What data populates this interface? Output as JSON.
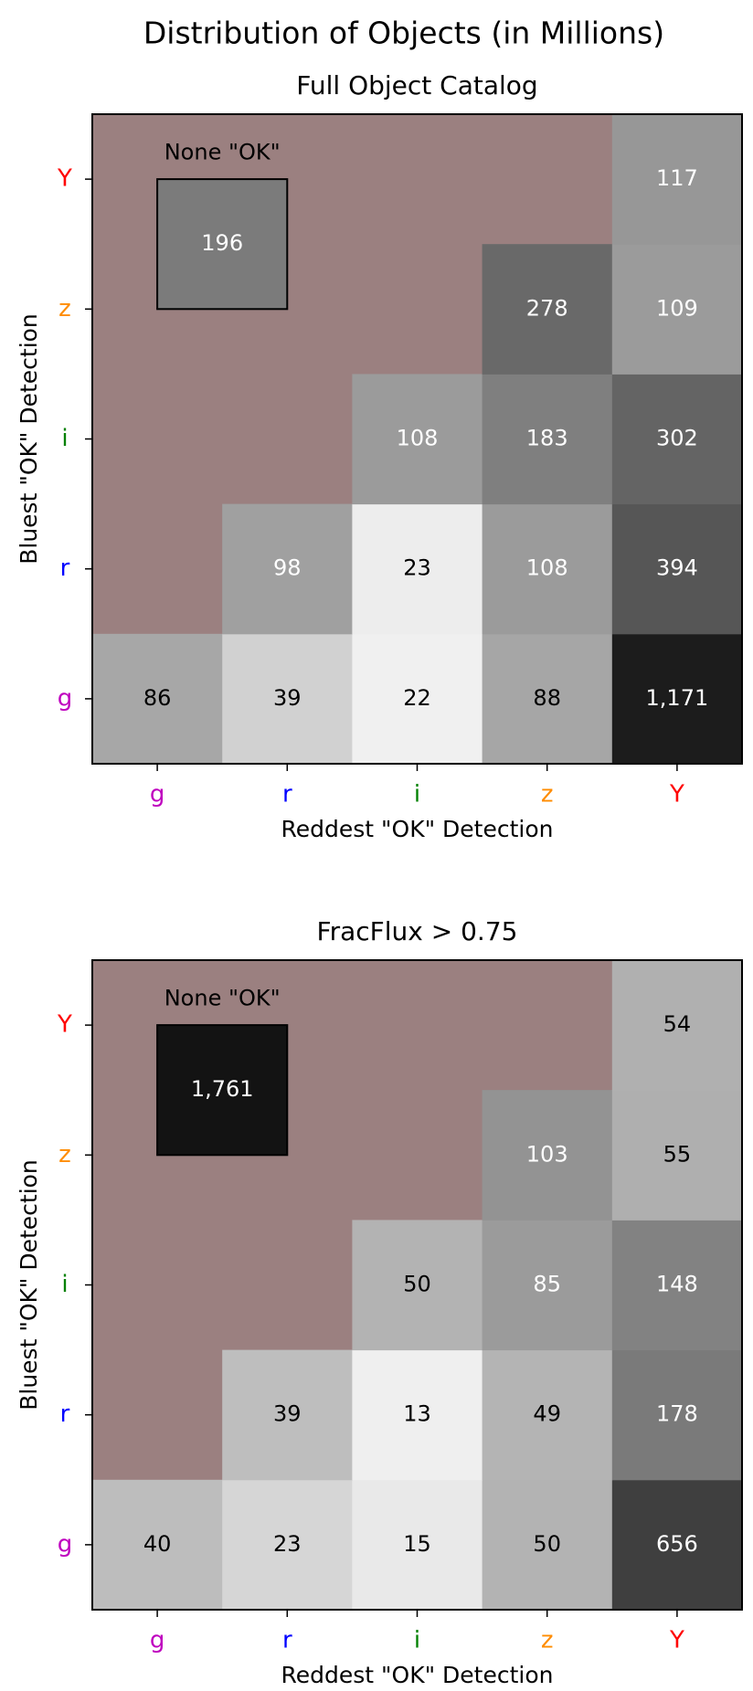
{
  "title": "Distribution of Objects (in Millions)",
  "chart_data": [
    {
      "type": "heatmap",
      "title": "Full Object Catalog",
      "x_label": "Reddest \"OK\" Detection",
      "y_label": "Bluest \"OK\" Detection",
      "x_categories": [
        "g",
        "r",
        "i",
        "z",
        "Y"
      ],
      "y_categories": [
        "g",
        "r",
        "i",
        "z",
        "Y"
      ],
      "tick_colors": [
        "#bf00bf",
        "#0000ff",
        "#008000",
        "#ff8c00",
        "#ff0000"
      ],
      "values": [
        [
          86,
          39,
          22,
          88,
          1171
        ],
        [
          null,
          98,
          23,
          108,
          394
        ],
        [
          null,
          null,
          108,
          183,
          302
        ],
        [
          null,
          null,
          null,
          278,
          109
        ],
        [
          null,
          null,
          null,
          null,
          117
        ]
      ],
      "value_labels": [
        [
          null,
          null,
          null,
          null,
          "1,171"
        ],
        [
          null,
          null,
          null,
          null,
          null
        ],
        [
          null,
          null,
          null,
          null,
          null
        ],
        [
          null,
          null,
          null,
          null,
          null
        ],
        [
          null,
          null,
          null,
          null,
          null
        ]
      ],
      "none_label": "None \"OK\"",
      "none_value": 196,
      "color_scale": "log",
      "clim": [
        16.5,
        1990
      ],
      "background": "#9b8080"
    },
    {
      "type": "heatmap",
      "title": "FracFlux > 0.75",
      "x_label": "Reddest \"OK\" Detection",
      "y_label": "Bluest \"OK\" Detection",
      "x_categories": [
        "g",
        "r",
        "i",
        "z",
        "Y"
      ],
      "y_categories": [
        "g",
        "r",
        "i",
        "z",
        "Y"
      ],
      "tick_colors": [
        "#bf00bf",
        "#0000ff",
        "#008000",
        "#ff8c00",
        "#ff0000"
      ],
      "values": [
        [
          40,
          23,
          15,
          50,
          656
        ],
        [
          null,
          39,
          13,
          49,
          178
        ],
        [
          null,
          null,
          50,
          85,
          148
        ],
        [
          null,
          null,
          null,
          103,
          55
        ],
        [
          null,
          null,
          null,
          null,
          54
        ]
      ],
      "value_labels": [
        [
          null,
          null,
          null,
          null,
          null
        ],
        [
          null,
          null,
          null,
          null,
          null
        ],
        [
          null,
          null,
          null,
          null,
          null
        ],
        [
          null,
          null,
          null,
          null,
          null
        ],
        [
          null,
          null,
          null,
          null,
          null
        ]
      ],
      "none_label": "None \"OK\"",
      "none_value": 1761,
      "none_value_label": "1,761",
      "color_scale": "log",
      "clim": [
        9.2,
        2700
      ],
      "background": "#9b8080"
    }
  ]
}
